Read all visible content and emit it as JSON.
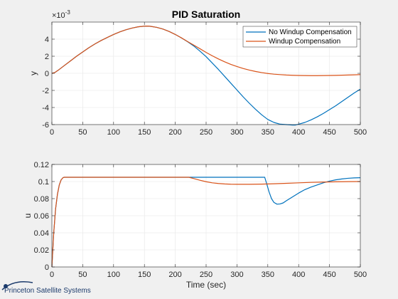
{
  "logo": {
    "text": "Princeton Satellite Systems"
  },
  "chart_data": [
    {
      "type": "line",
      "title": "PID Saturation",
      "xlabel": "",
      "ylabel": "y",
      "exponent_label": "×10",
      "exponent_power": "-3",
      "xlim": [
        0,
        500
      ],
      "ylim": [
        -6,
        6
      ],
      "xticks": [
        0,
        50,
        100,
        150,
        200,
        250,
        300,
        350,
        400,
        450,
        500
      ],
      "yticks": [
        -6,
        -4,
        -2,
        0,
        2,
        4
      ],
      "grid": true,
      "legend": "top-right",
      "series": [
        {
          "name": "No Windup Compensation",
          "color": "#0072BD",
          "x": [
            0,
            5,
            10,
            20,
            30,
            40,
            50,
            60,
            70,
            80,
            90,
            100,
            110,
            120,
            130,
            140,
            150,
            155,
            160,
            170,
            180,
            190,
            200,
            210,
            220,
            230,
            240,
            250,
            260,
            270,
            280,
            290,
            300,
            310,
            320,
            330,
            340,
            350,
            360,
            370,
            380,
            390,
            395,
            400,
            410,
            420,
            430,
            440,
            450,
            460,
            470,
            480,
            490,
            500
          ],
          "y": [
            0,
            0.1,
            0.35,
            0.9,
            1.45,
            2.0,
            2.5,
            3.0,
            3.45,
            3.85,
            4.2,
            4.55,
            4.85,
            5.1,
            5.3,
            5.45,
            5.52,
            5.53,
            5.5,
            5.38,
            5.18,
            4.9,
            4.55,
            4.15,
            3.7,
            3.2,
            2.6,
            1.95,
            1.2,
            0.45,
            -0.35,
            -1.15,
            -1.95,
            -2.75,
            -3.5,
            -4.2,
            -4.85,
            -5.4,
            -5.75,
            -5.95,
            -6.0,
            -6.05,
            -6.05,
            -5.95,
            -5.75,
            -5.45,
            -5.1,
            -4.7,
            -4.25,
            -3.8,
            -3.3,
            -2.8,
            -2.3,
            -1.85
          ]
        },
        {
          "name": "Windup Compensation",
          "color": "#D95319",
          "x": [
            0,
            5,
            10,
            20,
            30,
            40,
            50,
            60,
            70,
            80,
            90,
            100,
            110,
            120,
            130,
            140,
            150,
            155,
            160,
            170,
            180,
            190,
            200,
            210,
            220,
            230,
            240,
            250,
            260,
            270,
            280,
            290,
            300,
            310,
            320,
            330,
            340,
            350,
            360,
            370,
            380,
            390,
            400,
            410,
            420,
            430,
            440,
            450,
            460,
            470,
            480,
            490,
            500
          ],
          "y": [
            0,
            0.1,
            0.35,
            0.9,
            1.45,
            2.0,
            2.5,
            3.0,
            3.45,
            3.85,
            4.2,
            4.55,
            4.85,
            5.1,
            5.3,
            5.45,
            5.52,
            5.53,
            5.5,
            5.38,
            5.18,
            4.9,
            4.55,
            4.15,
            3.72,
            3.3,
            2.88,
            2.45,
            2.05,
            1.68,
            1.35,
            1.05,
            0.8,
            0.57,
            0.38,
            0.22,
            0.09,
            -0.02,
            -0.1,
            -0.15,
            -0.2,
            -0.23,
            -0.25,
            -0.26,
            -0.27,
            -0.27,
            -0.26,
            -0.25,
            -0.24,
            -0.22,
            -0.2,
            -0.18,
            -0.15
          ]
        }
      ]
    },
    {
      "type": "line",
      "title": "",
      "xlabel": "Time (sec)",
      "ylabel": "u",
      "xlim": [
        0,
        500
      ],
      "ylim": [
        0,
        0.12
      ],
      "xticks": [
        0,
        50,
        100,
        150,
        200,
        250,
        300,
        350,
        400,
        450,
        500
      ],
      "yticks": [
        0,
        0.02,
        0.04,
        0.06,
        0.08,
        0.1,
        0.12
      ],
      "grid": true,
      "series": [
        {
          "name": "No Windup Compensation",
          "color": "#0072BD",
          "x": [
            0,
            3,
            6,
            9,
            12,
            15,
            18,
            20,
            100,
            200,
            300,
            345,
            348,
            352,
            356,
            360,
            365,
            370,
            375,
            380,
            390,
            400,
            410,
            420,
            430,
            440,
            450,
            460,
            470,
            480,
            490,
            500
          ],
          "y": [
            0,
            0.04,
            0.068,
            0.085,
            0.096,
            0.102,
            0.1045,
            0.105,
            0.105,
            0.105,
            0.105,
            0.105,
            0.098,
            0.088,
            0.08,
            0.0755,
            0.0735,
            0.0738,
            0.075,
            0.0775,
            0.082,
            0.0865,
            0.0905,
            0.0935,
            0.096,
            0.0985,
            0.1005,
            0.102,
            0.103,
            0.1038,
            0.1043,
            0.1045
          ]
        },
        {
          "name": "Windup Compensation",
          "color": "#D95319",
          "x": [
            0,
            3,
            6,
            9,
            12,
            15,
            18,
            20,
            100,
            200,
            222,
            230,
            240,
            250,
            260,
            270,
            280,
            290,
            300,
            320,
            340,
            360,
            380,
            400,
            420,
            440,
            460,
            480,
            500
          ],
          "y": [
            0,
            0.04,
            0.068,
            0.085,
            0.096,
            0.102,
            0.1045,
            0.105,
            0.105,
            0.105,
            0.105,
            0.1035,
            0.1015,
            0.0998,
            0.0985,
            0.0977,
            0.0972,
            0.0969,
            0.0968,
            0.0968,
            0.097,
            0.0974,
            0.0979,
            0.0985,
            0.099,
            0.0994,
            0.0997,
            0.0999,
            0.1
          ]
        }
      ]
    }
  ]
}
